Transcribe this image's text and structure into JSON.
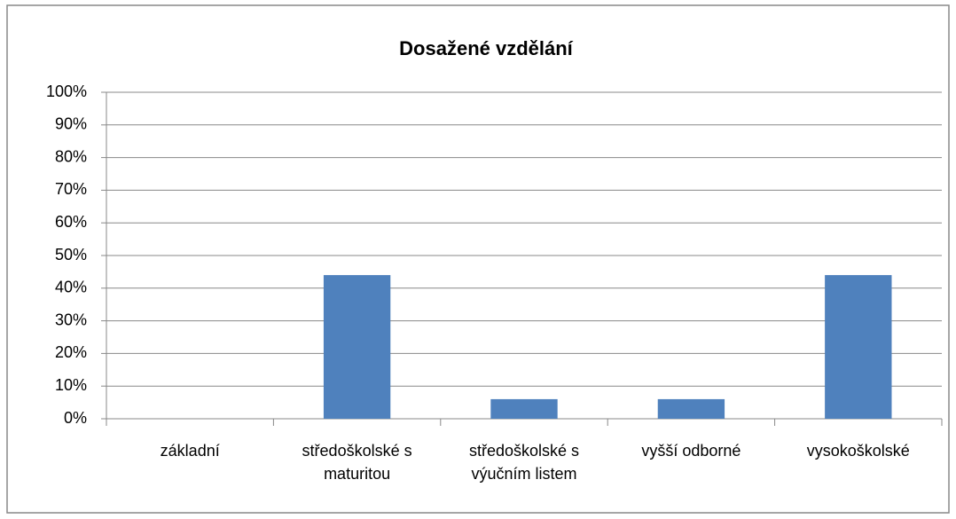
{
  "chart_data": {
    "type": "bar",
    "title": "Dosažené vzdělání",
    "categories": [
      "základní",
      "středoškolské s maturitou",
      "středoškolské s výučním listem",
      "vyšší odborné",
      "vysokoškolské"
    ],
    "values": [
      0,
      44,
      6,
      6,
      44
    ],
    "color": "#4f81bd",
    "ylim": [
      0,
      100
    ],
    "yticks": [
      {
        "value": 0,
        "label": "0%"
      },
      {
        "value": 10,
        "label": "10%"
      },
      {
        "value": 20,
        "label": "20%"
      },
      {
        "value": 30,
        "label": "30%"
      },
      {
        "value": 40,
        "label": "40%"
      },
      {
        "value": 50,
        "label": "50%"
      },
      {
        "value": 60,
        "label": "60%"
      },
      {
        "value": 70,
        "label": "70%"
      },
      {
        "value": 80,
        "label": "80%"
      },
      {
        "value": 90,
        "label": "90%"
      },
      {
        "value": 100,
        "label": "100%"
      }
    ],
    "grid": true
  }
}
